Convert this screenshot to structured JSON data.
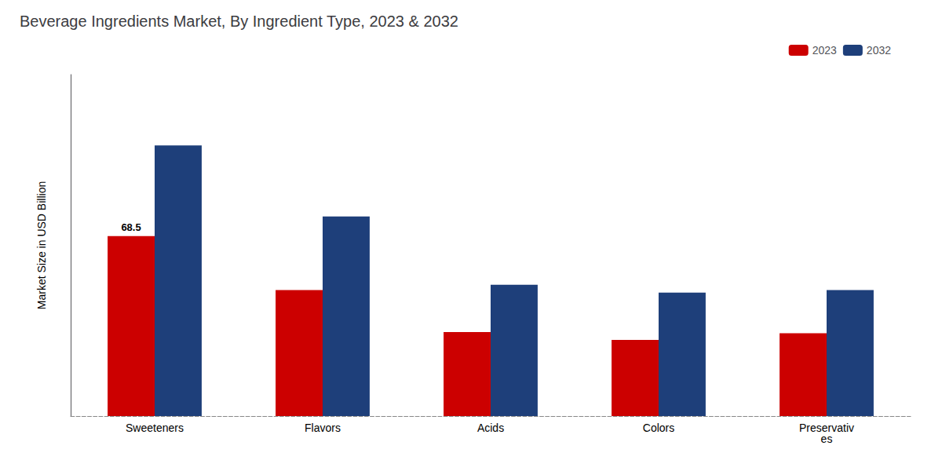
{
  "chart_data": {
    "type": "bar",
    "title": "Beverage Ingredients Market, By Ingredient Type, 2023 & 2032",
    "ylabel": "Market Size in USD Billion",
    "categories": [
      "Sweeteners",
      "Flavors",
      "Acids",
      "Colors",
      "Preservativ\nes"
    ],
    "series": [
      {
        "name": "2023",
        "color": "#cc0000",
        "values": [
          68.5,
          48.0,
          32.0,
          29.0,
          31.5
        ]
      },
      {
        "name": "2032",
        "color": "#1e3f7a",
        "values": [
          103.0,
          76.0,
          50.0,
          47.0,
          48.0
        ]
      }
    ],
    "annotations": [
      {
        "text": "68.5",
        "category": "Sweeteners",
        "series": "2023"
      }
    ],
    "ylim": [
      0,
      130
    ],
    "grid": false,
    "legend": "upper right",
    "tick_labels": "x"
  }
}
